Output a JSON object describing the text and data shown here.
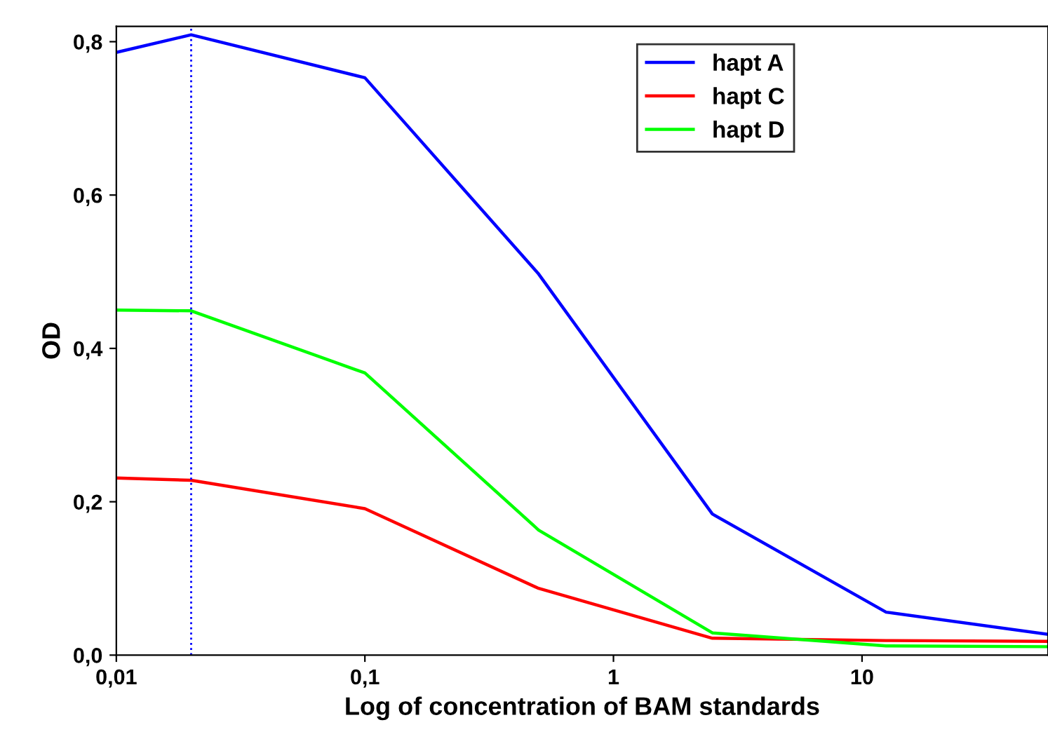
{
  "chart_data": {
    "type": "line",
    "xlabel": "Log of concentration of BAM standards",
    "ylabel": "OD",
    "log": "x",
    "x": [
      0.01,
      0.02,
      0.1,
      0.5,
      2.5,
      12.5,
      56
    ],
    "series": [
      {
        "name": "hapt A",
        "color": "#0000ff",
        "values": [
          0.786,
          0.809,
          0.753,
          0.497,
          0.184,
          0.056,
          0.027
        ]
      },
      {
        "name": "hapt C",
        "color": "#ff0000",
        "values": [
          0.231,
          0.228,
          0.191,
          0.087,
          0.022,
          0.019,
          0.018
        ]
      },
      {
        "name": "hapt D",
        "color": "#00ff00",
        "values": [
          0.45,
          0.449,
          0.368,
          0.163,
          0.029,
          0.012,
          0.011
        ]
      }
    ],
    "xlim": [
      0.01,
      56
    ],
    "xticks": [
      {
        "value": 0.01,
        "label": "0,01"
      },
      {
        "value": 0.1,
        "label": "0,1"
      },
      1,
      10
    ],
    "ylim": [
      0,
      0.82
    ],
    "yticks": [
      {
        "value": 0,
        "label": "0,0"
      },
      {
        "value": 0.2,
        "label": "0,2"
      },
      {
        "value": 0.4,
        "label": "0,4"
      },
      {
        "value": 0.6,
        "label": "0,6"
      },
      {
        "value": 0.8,
        "label": "0,8"
      }
    ],
    "ref_lines": [
      {
        "axis": "x",
        "value": 0.02,
        "color": "#0000ff",
        "line_style": "dotted"
      }
    ],
    "legend": "top right",
    "grid": false,
    "marker": "none",
    "line_style": "solid"
  }
}
